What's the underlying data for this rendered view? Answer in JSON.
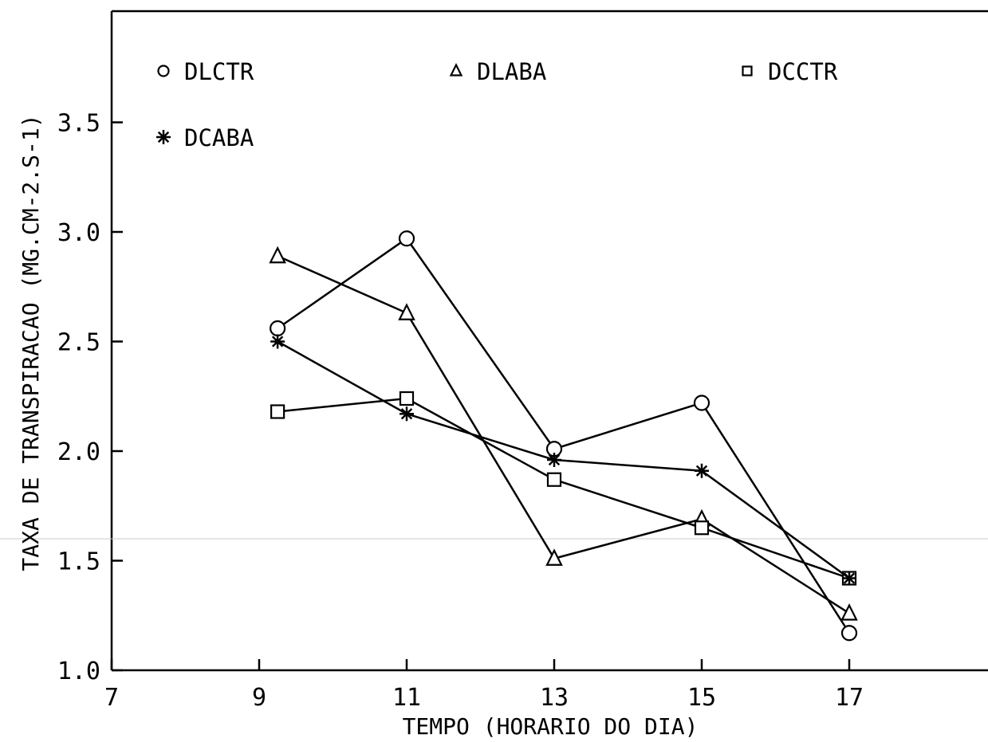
{
  "chart_data": {
    "type": "line",
    "xlabel": "TEMPO (HORARIO DO DIA)",
    "ylabel": "TAXA DE TRANSPIRACAO (MG.CM-2.S-1)",
    "xlim": [
      7,
      19
    ],
    "ylim": [
      1.0,
      4.0
    ],
    "x_ticks": [
      7,
      9,
      11,
      13,
      15,
      17
    ],
    "x_tick_labels": [
      "7",
      "9",
      "11",
      "13",
      "15",
      "17"
    ],
    "y_ticks": [
      1.0,
      1.5,
      2.0,
      2.5,
      3.0,
      3.5
    ],
    "y_tick_labels": [
      "1.0",
      "1.5",
      "2.0",
      "2.5",
      "3.0",
      "3.5"
    ],
    "grid": false,
    "legend_position": "top",
    "series": [
      {
        "name": "DLCTR",
        "marker": "circle",
        "x": [
          9.25,
          11,
          13,
          15,
          17
        ],
        "y": [
          2.56,
          2.97,
          2.01,
          2.22,
          1.17
        ]
      },
      {
        "name": "DLABA",
        "marker": "triangle",
        "x": [
          9.25,
          11,
          13,
          15,
          17
        ],
        "y": [
          2.89,
          2.63,
          1.51,
          1.69,
          1.26
        ]
      },
      {
        "name": "DCCTR",
        "marker": "square",
        "x": [
          9.25,
          11,
          13,
          15,
          17
        ],
        "y": [
          2.18,
          2.24,
          1.87,
          1.65,
          1.42
        ]
      },
      {
        "name": "DCABA",
        "marker": "star",
        "x": [
          9.25,
          11,
          13,
          15,
          17
        ],
        "y": [
          2.5,
          2.17,
          1.96,
          1.91,
          1.42
        ]
      }
    ]
  }
}
